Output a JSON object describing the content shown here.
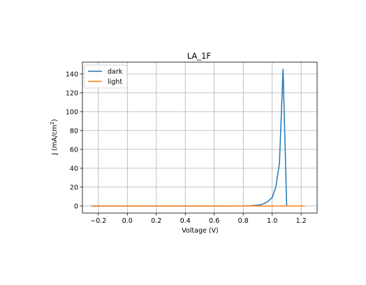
{
  "chart_data": {
    "type": "line",
    "title": "LA_1F",
    "xlabel": "Voltage (V)",
    "ylabel_main": "J (mA/cm",
    "ylabel_sup": "2",
    "ylabel_close": ")",
    "xlim": [
      -0.31,
      1.31
    ],
    "ylim": [
      -7.5,
      152.5
    ],
    "xticks": [
      -0.2,
      0.0,
      0.2,
      0.4,
      0.6,
      0.8,
      1.0,
      1.2
    ],
    "xtick_labels": [
      "−0.2",
      "0.0",
      "0.2",
      "0.4",
      "0.6",
      "0.8",
      "1.0",
      "1.2"
    ],
    "yticks": [
      0,
      20,
      40,
      60,
      80,
      100,
      120,
      140
    ],
    "ytick_labels": [
      "0",
      "20",
      "40",
      "60",
      "80",
      "100",
      "120",
      "140"
    ],
    "grid": true,
    "legend_position": "top-left",
    "series": [
      {
        "name": "dark",
        "color": "#1f77b4",
        "x": [
          -0.25,
          0.0,
          0.5,
          0.8,
          0.85,
          0.9,
          0.925,
          0.95,
          0.975,
          1.0,
          1.025,
          1.05,
          1.075,
          1.1
        ],
        "y": [
          0,
          0,
          0,
          0.1,
          0.3,
          0.8,
          1.5,
          3,
          5.5,
          9,
          20,
          45,
          145,
          0
        ]
      },
      {
        "name": "light",
        "color": "#ff7f0e",
        "x": [
          -0.25,
          0.0,
          0.5,
          1.0,
          1.225
        ],
        "y": [
          0,
          0,
          0,
          0,
          0
        ]
      }
    ]
  }
}
